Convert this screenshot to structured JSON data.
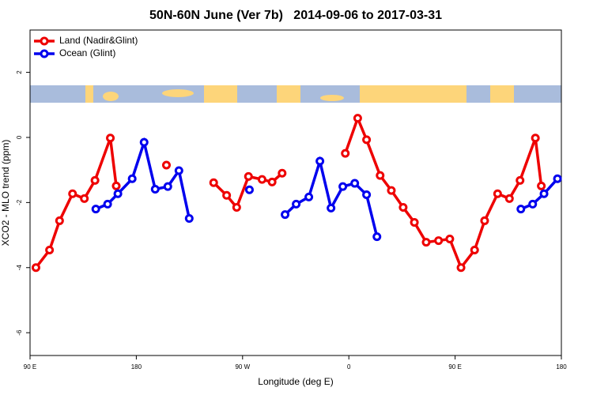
{
  "chart_data": {
    "type": "line",
    "title": "50N-60N June (Ver 7b)   2014-09-06 to 2017-03-31",
    "x_label": "Longitude (deg E)",
    "y_label": "XCO2 - MLO trend (ppm)",
    "xlim": [
      90,
      540
    ],
    "ylim": [
      -6.7,
      3.3
    ],
    "xticks": [
      {
        "value": 90,
        "label": "90 E"
      },
      {
        "value": 180,
        "label": "180"
      },
      {
        "value": 270,
        "label": "90 W"
      },
      {
        "value": 360,
        "label": "0"
      },
      {
        "value": 450,
        "label": "90 E"
      },
      {
        "value": 540,
        "label": "180"
      }
    ],
    "yticks": [
      -6,
      -4,
      -2,
      0,
      2
    ],
    "legend": "top-left",
    "series": [
      {
        "name": "Land (Nadir&Glint)",
        "color": "#ee0000",
        "x": [
          95,
          106.5,
          115,
          126,
          136,
          145,
          158,
          163,
          null,
          205.5,
          null,
          245.5,
          256.5,
          265,
          275,
          286.5,
          295,
          303.5,
          null,
          357,
          367.5,
          375,
          386.5,
          396,
          406,
          415.5,
          425.5,
          436,
          445.5,
          455,
          466.5,
          475,
          486,
          496,
          505,
          518,
          523
        ],
        "values": [
          -4.0,
          -3.46,
          -2.56,
          -1.73,
          -1.88,
          -1.32,
          -0.02,
          -1.49,
          null,
          -0.85,
          null,
          -1.39,
          -1.78,
          -2.15,
          -1.2,
          -1.29,
          -1.37,
          -1.1,
          null,
          -0.49,
          0.59,
          -0.07,
          -1.17,
          -1.63,
          -2.15,
          -2.61,
          -3.22,
          -3.17,
          -3.12,
          -4.0,
          -3.46,
          -2.56,
          -1.73,
          -1.88,
          -1.32,
          -0.02,
          -1.49
        ]
      },
      {
        "name": "Ocean (Glint)",
        "color": "#0000ee",
        "x": [
          145.7,
          155.7,
          164.4,
          176.5,
          186.6,
          196,
          206.7,
          216.1,
          224.8,
          null,
          275.8,
          null,
          306,
          315.4,
          326.1,
          335.5,
          344.9,
          354.9,
          365,
          375,
          383.8,
          null,
          505.7,
          515.7,
          525.3,
          536.7
        ],
        "values": [
          -2.2,
          -2.05,
          -1.73,
          -1.27,
          -0.15,
          -1.59,
          -1.51,
          -1.02,
          -2.49,
          null,
          -1.61,
          null,
          -2.37,
          -2.05,
          -1.83,
          -0.73,
          -2.17,
          -1.51,
          -1.41,
          -1.76,
          -3.05,
          null,
          -2.2,
          -2.05,
          -1.73,
          -1.27
        ]
      }
    ]
  }
}
